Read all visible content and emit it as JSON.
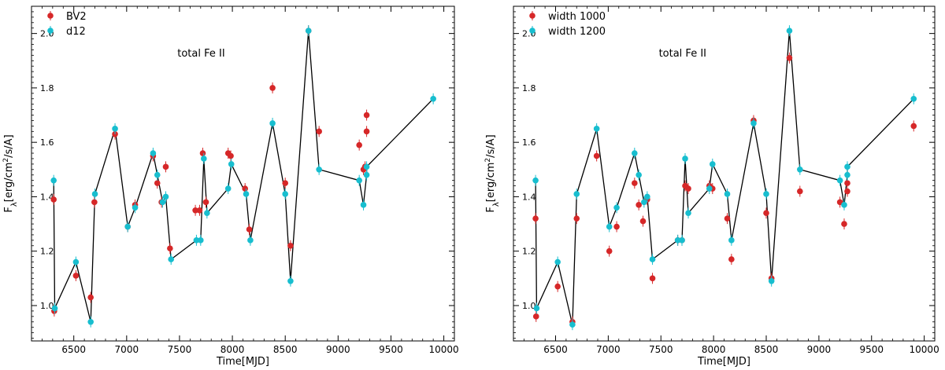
{
  "chart_data": [
    {
      "type": "scatter",
      "annotation": "total Fe II",
      "xlabel": "Time[MJD]",
      "ylabel": "F_λ[erg/cm²/s/A]",
      "ylabel_parts": {
        "main": "F",
        "sub": "λ",
        "pre": "[erg/cm",
        "sup": "2",
        "post": "/s/A]"
      },
      "xlim": [
        6100,
        10100
      ],
      "ylim": [
        0.87,
        2.1
      ],
      "x_ticks": [
        6500,
        7000,
        7500,
        8000,
        8500,
        9000,
        9500,
        10000
      ],
      "y_ticks": [
        1.0,
        1.2,
        1.4,
        1.6,
        1.8,
        2.0
      ],
      "y_tick_labels": [
        "1.0",
        "1.2",
        "1.4",
        "1.6",
        "1.8",
        "2.0"
      ],
      "legend_position": "top-left",
      "line_series": "d12",
      "series": [
        {
          "name": "BV2",
          "color": "#d62728",
          "points": [
            [
              6310,
              1.39
            ],
            [
              6315,
              0.98
            ],
            [
              6520,
              1.11
            ],
            [
              6660,
              1.03
            ],
            [
              6695,
              1.38
            ],
            [
              6890,
              1.63
            ],
            [
              7010,
              1.29
            ],
            [
              7080,
              1.37
            ],
            [
              7250,
              1.55
            ],
            [
              7290,
              1.45
            ],
            [
              7330,
              1.38
            ],
            [
              7370,
              1.51
            ],
            [
              7410,
              1.21
            ],
            [
              7650,
              1.35
            ],
            [
              7690,
              1.35
            ],
            [
              7720,
              1.56
            ],
            [
              7750,
              1.38
            ],
            [
              7960,
              1.56
            ],
            [
              7985,
              1.55
            ],
            [
              8120,
              1.43
            ],
            [
              8160,
              1.28
            ],
            [
              8380,
              1.8
            ],
            [
              8500,
              1.45
            ],
            [
              8550,
              1.22
            ],
            [
              8720,
              2.01
            ],
            [
              8820,
              1.64
            ],
            [
              9200,
              1.59
            ],
            [
              9240,
              1.5
            ],
            [
              9255,
              1.51
            ],
            [
              9270,
              1.64
            ],
            [
              9270,
              1.7
            ]
          ]
        },
        {
          "name": "d12",
          "color": "#17becf",
          "points": [
            [
              6310,
              1.46
            ],
            [
              6320,
              0.99
            ],
            [
              6520,
              1.16
            ],
            [
              6660,
              0.94
            ],
            [
              6700,
              1.41
            ],
            [
              6890,
              1.65
            ],
            [
              7010,
              1.29
            ],
            [
              7080,
              1.36
            ],
            [
              7250,
              1.56
            ],
            [
              7290,
              1.48
            ],
            [
              7340,
              1.38
            ],
            [
              7370,
              1.4
            ],
            [
              7420,
              1.17
            ],
            [
              7660,
              1.24
            ],
            [
              7700,
              1.24
            ],
            [
              7730,
              1.54
            ],
            [
              7760,
              1.34
            ],
            [
              7960,
              1.43
            ],
            [
              7990,
              1.52
            ],
            [
              8130,
              1.41
            ],
            [
              8170,
              1.24
            ],
            [
              8380,
              1.67
            ],
            [
              8500,
              1.41
            ],
            [
              8550,
              1.09
            ],
            [
              8720,
              2.01
            ],
            [
              8820,
              1.5
            ],
            [
              9200,
              1.46
            ],
            [
              9240,
              1.37
            ],
            [
              9270,
              1.48
            ],
            [
              9270,
              1.51
            ],
            [
              9900,
              1.76
            ]
          ]
        }
      ]
    },
    {
      "type": "scatter",
      "annotation": "total Fe II",
      "xlabel": "Time[MJD]",
      "ylabel": "F_λ[erg/cm²/s/A]",
      "ylabel_parts": {
        "main": "F",
        "sub": "λ",
        "pre": "[erg/cm",
        "sup": "2",
        "post": "/s/A]"
      },
      "xlim": [
        6100,
        10100
      ],
      "ylim": [
        0.87,
        2.1
      ],
      "x_ticks": [
        6500,
        7000,
        7500,
        8000,
        8500,
        9000,
        9500,
        10000
      ],
      "y_ticks": [
        1.0,
        1.2,
        1.4,
        1.6,
        1.8,
        2.0
      ],
      "y_tick_labels": [
        "1.0",
        "1.2",
        "1.4",
        "1.6",
        "1.8",
        "2.0"
      ],
      "legend_position": "top-left",
      "line_series": "width 1200",
      "series": [
        {
          "name": "width 1000",
          "color": "#d62728",
          "points": [
            [
              6310,
              1.32
            ],
            [
              6315,
              0.96
            ],
            [
              6520,
              1.07
            ],
            [
              6660,
              0.94
            ],
            [
              6700,
              1.32
            ],
            [
              6890,
              1.55
            ],
            [
              7010,
              1.2
            ],
            [
              7080,
              1.29
            ],
            [
              7250,
              1.45
            ],
            [
              7290,
              1.37
            ],
            [
              7330,
              1.31
            ],
            [
              7370,
              1.39
            ],
            [
              7420,
              1.1
            ],
            [
              7660,
              1.24
            ],
            [
              7700,
              1.24
            ],
            [
              7730,
              1.44
            ],
            [
              7760,
              1.43
            ],
            [
              7960,
              1.44
            ],
            [
              7990,
              1.43
            ],
            [
              8130,
              1.32
            ],
            [
              8170,
              1.17
            ],
            [
              8380,
              1.68
            ],
            [
              8500,
              1.34
            ],
            [
              8550,
              1.1
            ],
            [
              8720,
              1.91
            ],
            [
              8820,
              1.42
            ],
            [
              9200,
              1.38
            ],
            [
              9240,
              1.3
            ],
            [
              9270,
              1.42
            ],
            [
              9270,
              1.45
            ],
            [
              9900,
              1.66
            ]
          ]
        },
        {
          "name": "width 1200",
          "color": "#17becf",
          "points": [
            [
              6310,
              1.46
            ],
            [
              6320,
              0.99
            ],
            [
              6520,
              1.16
            ],
            [
              6660,
              0.93
            ],
            [
              6700,
              1.41
            ],
            [
              6890,
              1.65
            ],
            [
              7010,
              1.29
            ],
            [
              7080,
              1.36
            ],
            [
              7250,
              1.56
            ],
            [
              7290,
              1.48
            ],
            [
              7340,
              1.38
            ],
            [
              7370,
              1.4
            ],
            [
              7420,
              1.17
            ],
            [
              7660,
              1.24
            ],
            [
              7700,
              1.24
            ],
            [
              7730,
              1.54
            ],
            [
              7760,
              1.34
            ],
            [
              7960,
              1.43
            ],
            [
              7990,
              1.52
            ],
            [
              8130,
              1.41
            ],
            [
              8170,
              1.24
            ],
            [
              8380,
              1.67
            ],
            [
              8500,
              1.41
            ],
            [
              8550,
              1.09
            ],
            [
              8720,
              2.01
            ],
            [
              8820,
              1.5
            ],
            [
              9200,
              1.46
            ],
            [
              9240,
              1.37
            ],
            [
              9270,
              1.48
            ],
            [
              9270,
              1.51
            ],
            [
              9900,
              1.76
            ]
          ]
        }
      ]
    }
  ]
}
